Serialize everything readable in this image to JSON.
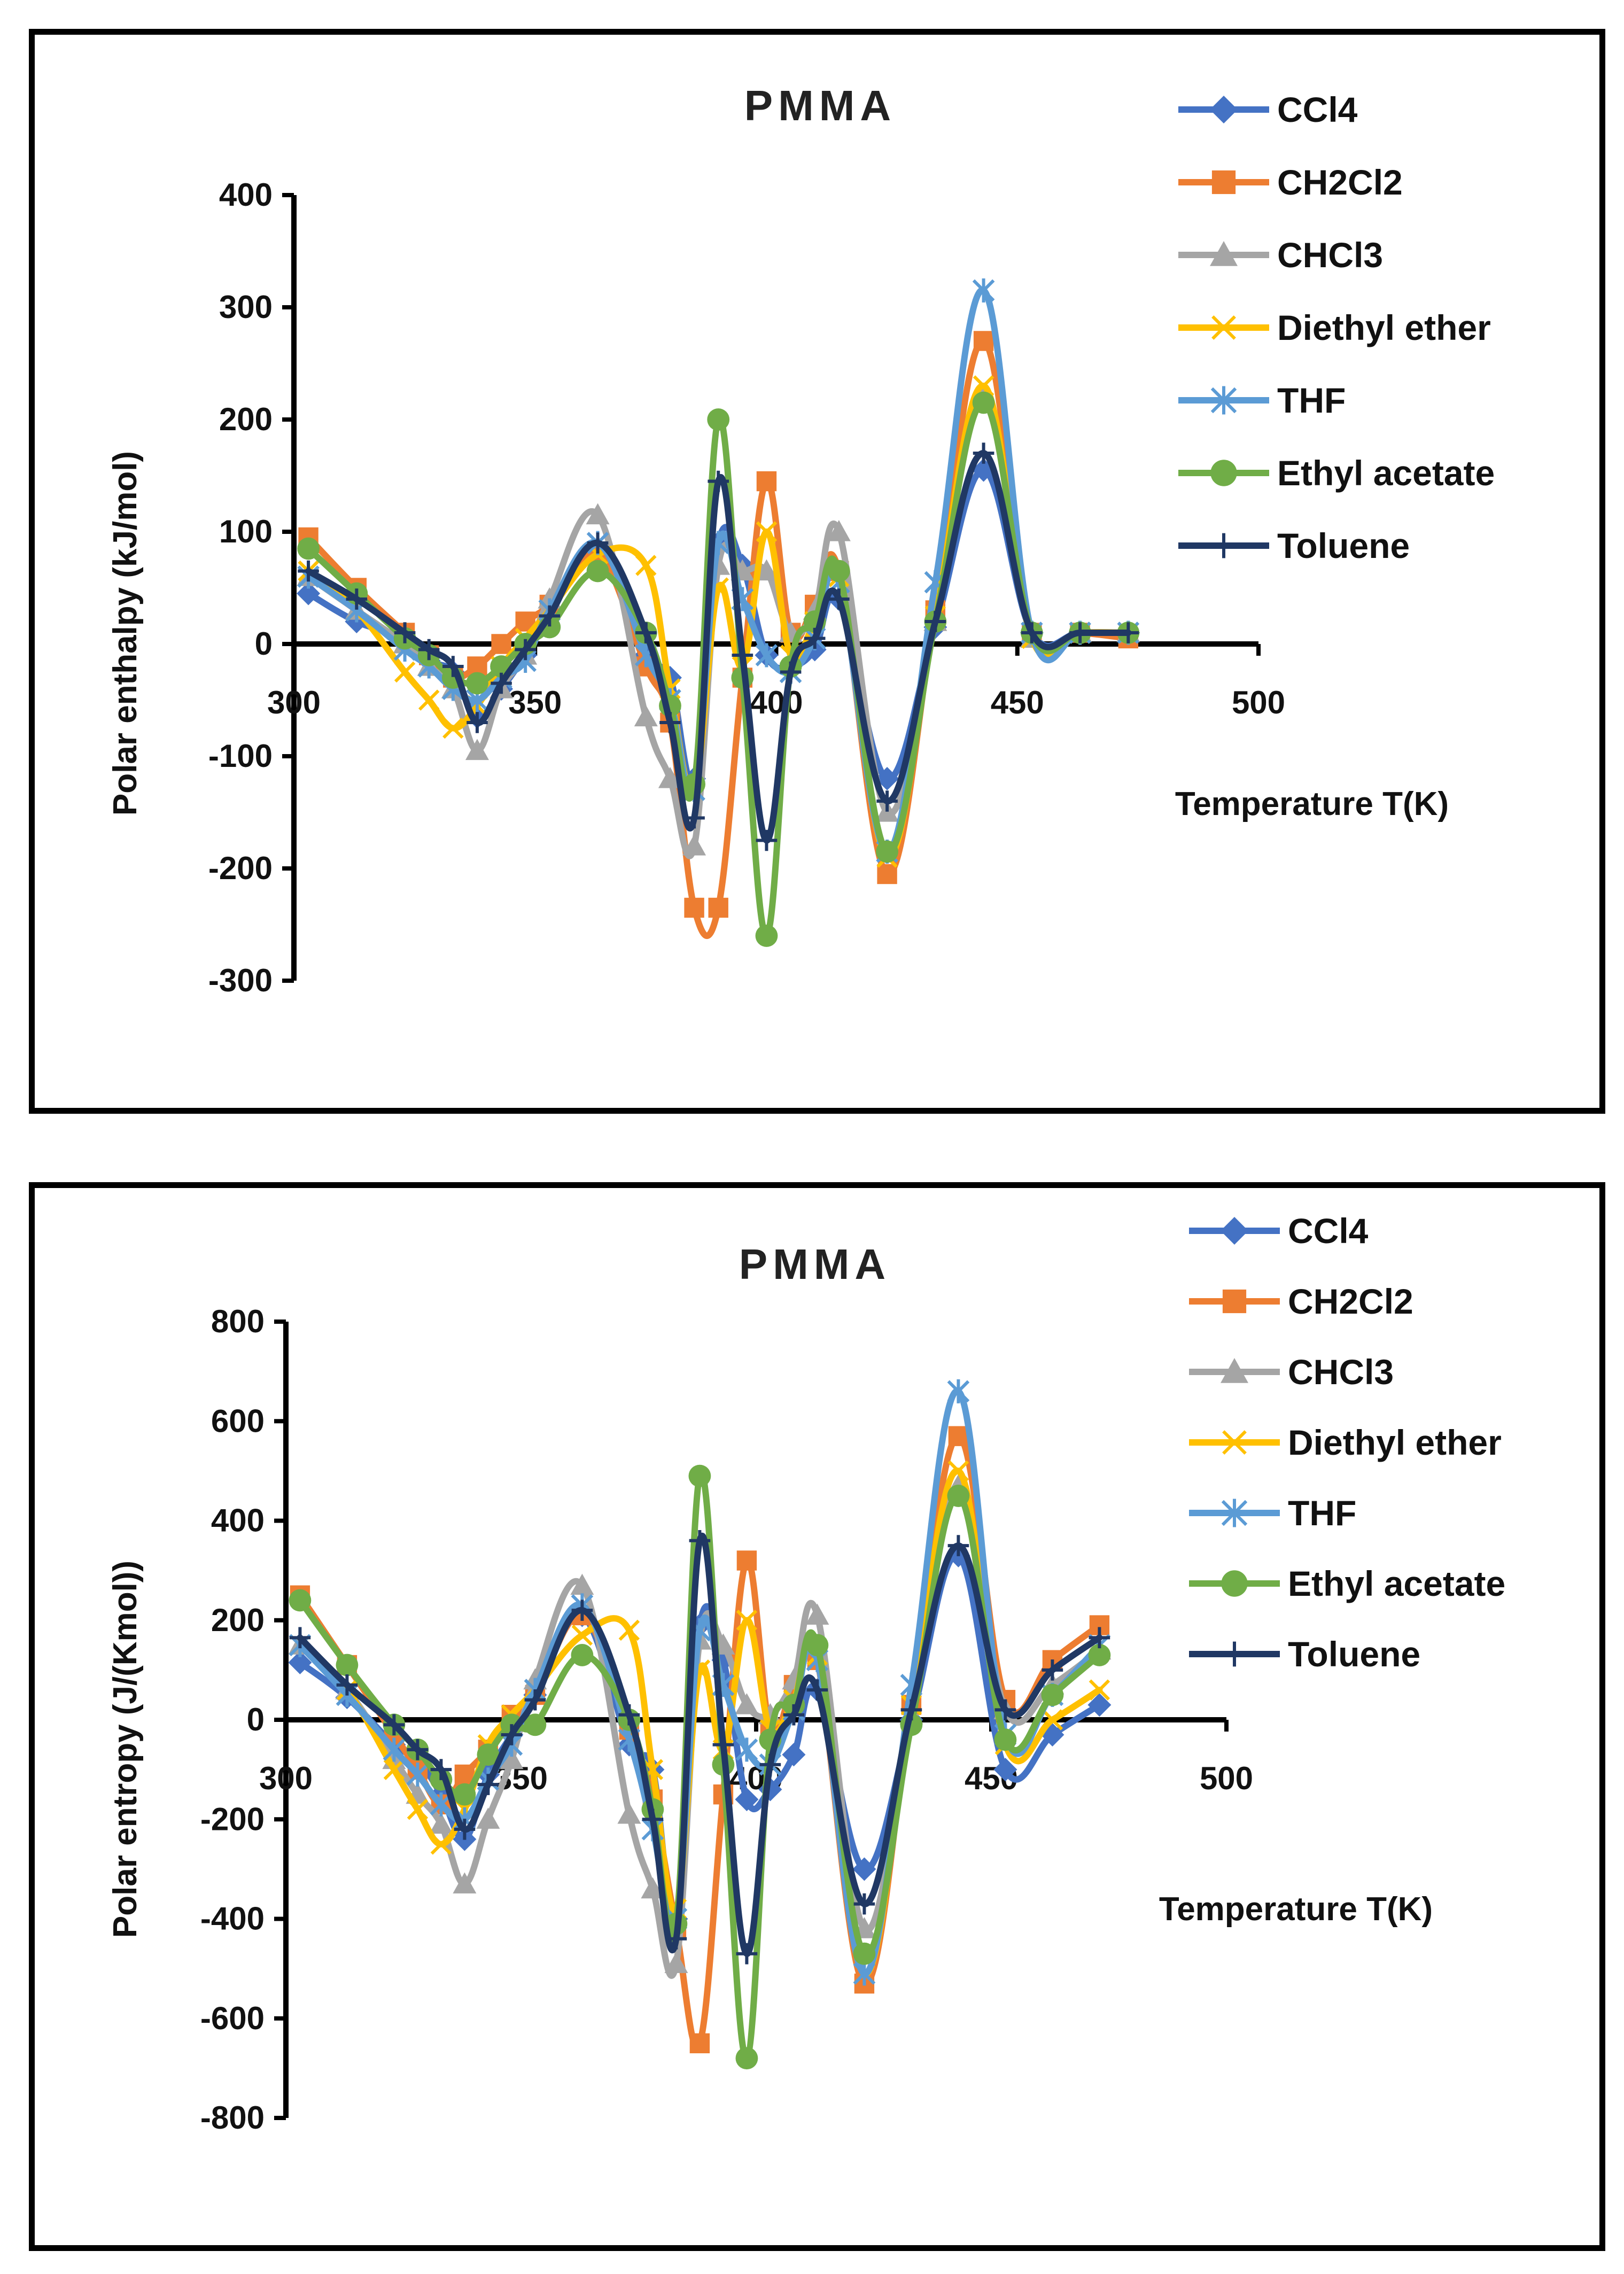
{
  "chart_data": [
    {
      "type": "line",
      "title": "PMMA",
      "xlabel": "Temperature T(K)",
      "ylabel": "Polar enthalpy (kJ/mol)",
      "xlim": [
        300,
        500
      ],
      "ylim": [
        -300,
        400
      ],
      "xticks": [
        300,
        350,
        400,
        450,
        500
      ],
      "yticks": [
        400,
        300,
        200,
        100,
        0,
        -100,
        -200,
        -300
      ],
      "xtick_labels": [
        "300",
        "350",
        "400",
        "450",
        "500"
      ],
      "ytick_labels": [
        "400",
        "300",
        "200",
        "100",
        "0",
        "-100",
        "-200",
        "-300"
      ],
      "legend_position": "top-right",
      "series": [
        {
          "name": "CCl4",
          "color": "#4472C4",
          "marker": "diamond",
          "x": [
            303,
            313,
            323,
            328,
            333,
            338,
            343,
            348,
            353,
            363,
            373,
            378,
            383,
            388,
            393,
            398,
            403,
            408,
            413,
            423,
            433,
            443,
            453,
            463,
            473
          ],
          "y": [
            45,
            20,
            5,
            -15,
            -25,
            -65,
            -40,
            -10,
            25,
            85,
            -10,
            -30,
            -120,
            90,
            70,
            -10,
            -20,
            -5,
            40,
            -120,
            15,
            155,
            10,
            10,
            10
          ]
        },
        {
          "name": "CH2Cl2",
          "color": "#ED7D31",
          "marker": "square",
          "x": [
            303,
            313,
            323,
            328,
            333,
            338,
            343,
            348,
            353,
            363,
            373,
            378,
            383,
            388,
            393,
            398,
            403,
            408,
            413,
            423,
            433,
            443,
            453,
            463,
            473
          ],
          "y": [
            95,
            50,
            10,
            -10,
            -30,
            -20,
            0,
            20,
            35,
            80,
            -20,
            -70,
            -235,
            -235,
            -30,
            145,
            10,
            35,
            65,
            -205,
            30,
            270,
            10,
            10,
            5
          ]
        },
        {
          "name": "CHCl3",
          "color": "#A5A5A5",
          "marker": "triangle",
          "x": [
            303,
            313,
            323,
            328,
            333,
            338,
            343,
            348,
            353,
            363,
            373,
            378,
            383,
            388,
            393,
            398,
            403,
            408,
            413,
            423,
            433,
            443,
            453,
            463,
            473
          ],
          "y": [
            60,
            30,
            0,
            -20,
            -40,
            -95,
            -40,
            -10,
            40,
            115,
            -65,
            -120,
            -180,
            70,
            65,
            65,
            10,
            30,
            100,
            -150,
            20,
            220,
            5,
            10,
            10
          ]
        },
        {
          "name": "Diethyl ether",
          "color": "#FFC000",
          "marker": "x",
          "x": [
            303,
            313,
            323,
            328,
            333,
            338,
            343,
            348,
            353,
            363,
            373,
            378,
            383,
            388,
            393,
            398,
            403,
            408,
            413,
            423,
            433,
            443,
            453,
            463,
            473
          ],
          "y": [
            65,
            30,
            -25,
            -50,
            -75,
            -55,
            -20,
            5,
            30,
            80,
            70,
            -40,
            -130,
            50,
            -20,
            100,
            -10,
            20,
            60,
            -190,
            25,
            230,
            5,
            10,
            10
          ]
        },
        {
          "name": "THF",
          "color": "#5B9BD5",
          "marker": "star",
          "x": [
            303,
            313,
            323,
            328,
            333,
            338,
            343,
            348,
            353,
            363,
            373,
            378,
            383,
            388,
            393,
            398,
            403,
            408,
            413,
            423,
            433,
            443,
            453,
            463,
            473
          ],
          "y": [
            60,
            30,
            -5,
            -20,
            -40,
            -50,
            -30,
            -15,
            30,
            90,
            -10,
            -50,
            -130,
            90,
            40,
            -10,
            -25,
            5,
            55,
            -185,
            55,
            315,
            10,
            10,
            10
          ]
        },
        {
          "name": "Ethyl acetate",
          "color": "#70AD47",
          "marker": "circle",
          "x": [
            303,
            313,
            323,
            328,
            333,
            338,
            343,
            348,
            353,
            363,
            373,
            378,
            383,
            388,
            393,
            398,
            403,
            408,
            413,
            423,
            433,
            443,
            453,
            463,
            473
          ],
          "y": [
            85,
            45,
            5,
            -10,
            -30,
            -35,
            -20,
            0,
            15,
            65,
            10,
            -55,
            -125,
            200,
            -30,
            -260,
            -20,
            20,
            65,
            -185,
            20,
            215,
            10,
            10,
            10
          ]
        },
        {
          "name": "Toluene",
          "color": "#203864",
          "marker": "plus",
          "x": [
            303,
            313,
            323,
            328,
            333,
            338,
            343,
            348,
            353,
            363,
            373,
            378,
            383,
            388,
            393,
            398,
            403,
            408,
            413,
            423,
            433,
            443,
            453,
            463,
            473
          ],
          "y": [
            65,
            40,
            10,
            -5,
            -20,
            -70,
            -35,
            -5,
            25,
            90,
            10,
            -70,
            -155,
            145,
            -10,
            -175,
            -25,
            5,
            40,
            -140,
            20,
            170,
            10,
            10,
            10
          ]
        }
      ]
    },
    {
      "type": "line",
      "title": "PMMA",
      "xlabel": "Temperature T(K)",
      "ylabel": "Polar entropy (J/(Kmol))",
      "xlim": [
        300,
        500
      ],
      "ylim": [
        -800,
        800
      ],
      "xticks": [
        300,
        350,
        400,
        450,
        500
      ],
      "yticks": [
        800,
        600,
        400,
        200,
        0,
        -200,
        -400,
        -600,
        -800
      ],
      "xtick_labels": [
        "300",
        "350",
        "400",
        "450",
        "500"
      ],
      "ytick_labels": [
        "800",
        "600",
        "400",
        "200",
        "0",
        "-200",
        "-400",
        "-600",
        "-800"
      ],
      "legend_position": "top-right",
      "series": [
        {
          "name": "CCl4",
          "color": "#4472C4",
          "marker": "diamond",
          "x": [
            303,
            313,
            323,
            328,
            333,
            338,
            343,
            348,
            353,
            363,
            373,
            378,
            383,
            388,
            393,
            398,
            403,
            408,
            413,
            423,
            433,
            443,
            453,
            463,
            473
          ],
          "y": [
            115,
            45,
            -50,
            -80,
            -150,
            -240,
            -110,
            -30,
            50,
            210,
            -50,
            -100,
            -400,
            190,
            120,
            -160,
            -140,
            -70,
            60,
            -300,
            0,
            330,
            -100,
            -30,
            30
          ]
        },
        {
          "name": "CH2Cl2",
          "color": "#ED7D31",
          "marker": "square",
          "x": [
            303,
            313,
            323,
            328,
            333,
            338,
            343,
            348,
            353,
            363,
            373,
            378,
            383,
            388,
            393,
            398,
            403,
            408,
            413,
            423,
            433,
            443,
            453,
            463,
            473
          ],
          "y": [
            250,
            110,
            -30,
            -100,
            -170,
            -110,
            -60,
            10,
            50,
            210,
            -20,
            -160,
            -420,
            -650,
            -150,
            320,
            -20,
            70,
            120,
            -530,
            30,
            570,
            40,
            120,
            190
          ]
        },
        {
          "name": "CHCl3",
          "color": "#A5A5A5",
          "marker": "triangle",
          "x": [
            303,
            313,
            323,
            328,
            333,
            338,
            343,
            348,
            353,
            363,
            373,
            378,
            383,
            388,
            393,
            398,
            403,
            408,
            413,
            423,
            433,
            443,
            453,
            463,
            473
          ],
          "y": [
            150,
            60,
            -80,
            -150,
            -210,
            -330,
            -200,
            -80,
            80,
            270,
            -190,
            -340,
            -490,
            160,
            150,
            30,
            10,
            80,
            210,
            -420,
            10,
            470,
            20,
            70,
            140
          ]
        },
        {
          "name": "Diethyl ether",
          "color": "#FFC000",
          "marker": "x",
          "x": [
            303,
            313,
            323,
            328,
            333,
            338,
            343,
            348,
            353,
            363,
            373,
            378,
            383,
            388,
            393,
            398,
            403,
            408,
            413,
            423,
            433,
            443,
            453,
            463,
            473
          ],
          "y": [
            150,
            60,
            -100,
            -180,
            -250,
            -180,
            -50,
            10,
            60,
            170,
            180,
            -100,
            -380,
            100,
            -60,
            200,
            -20,
            40,
            130,
            -510,
            30,
            500,
            -50,
            0,
            60
          ]
        },
        {
          "name": "THF",
          "color": "#5B9BD5",
          "marker": "star",
          "x": [
            303,
            313,
            323,
            328,
            333,
            338,
            343,
            348,
            353,
            363,
            373,
            378,
            383,
            388,
            393,
            398,
            403,
            408,
            413,
            423,
            433,
            443,
            453,
            463,
            473
          ],
          "y": [
            150,
            50,
            -60,
            -110,
            -170,
            -200,
            -120,
            -50,
            60,
            230,
            -40,
            -220,
            -400,
            180,
            70,
            -60,
            -90,
            20,
            120,
            -510,
            70,
            660,
            -30,
            50,
            150
          ]
        },
        {
          "name": "Ethyl acetate",
          "color": "#70AD47",
          "marker": "circle",
          "x": [
            303,
            313,
            323,
            328,
            333,
            338,
            343,
            348,
            353,
            363,
            373,
            378,
            383,
            388,
            393,
            398,
            403,
            408,
            413,
            423,
            433,
            443,
            453,
            463,
            473
          ],
          "y": [
            240,
            110,
            -10,
            -60,
            -120,
            -150,
            -70,
            -10,
            -10,
            130,
            0,
            -180,
            -410,
            490,
            -90,
            -680,
            -40,
            30,
            150,
            -470,
            -10,
            450,
            -40,
            50,
            130
          ]
        },
        {
          "name": "Toluene",
          "color": "#203864",
          "marker": "plus",
          "x": [
            303,
            313,
            323,
            328,
            333,
            338,
            343,
            348,
            353,
            363,
            373,
            378,
            383,
            388,
            393,
            398,
            403,
            408,
            413,
            423,
            433,
            443,
            453,
            463,
            473
          ],
          "y": [
            165,
            70,
            -10,
            -60,
            -100,
            -220,
            -130,
            -30,
            40,
            220,
            10,
            -200,
            -440,
            360,
            -50,
            -470,
            -90,
            10,
            60,
            -370,
            20,
            350,
            20,
            100,
            165
          ]
        }
      ]
    }
  ]
}
